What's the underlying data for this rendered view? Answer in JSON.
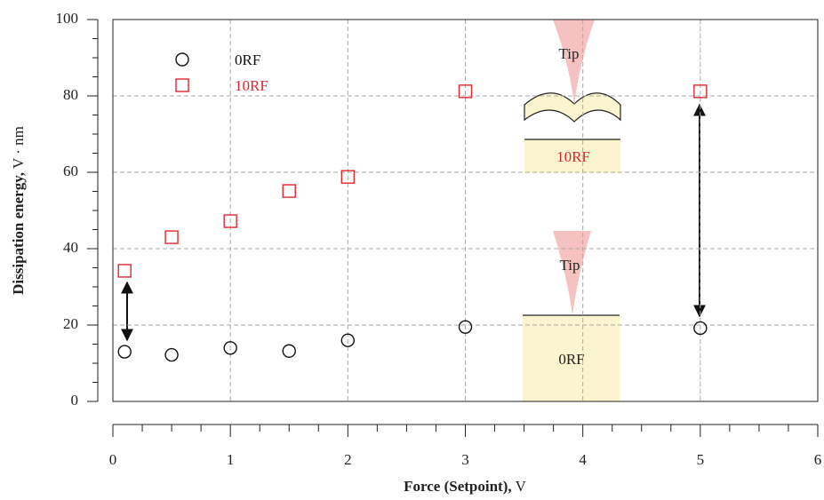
{
  "chart_data": {
    "type": "scatter",
    "ylabel": "Dissipation energy,",
    "yunit": "V · nm",
    "xlabel": "Force (Setpoint),",
    "xunit": "V",
    "x": [
      0.1,
      0.5,
      1,
      1.5,
      2,
      3,
      5
    ],
    "series": [
      {
        "name": "0RF",
        "color": "#111111",
        "marker": "circle",
        "values": [
          13,
          12.2,
          14,
          13.2,
          16,
          19.5,
          19.2
        ]
      },
      {
        "name": "10RF",
        "color": "#e0282e",
        "marker": "square",
        "values": [
          34.2,
          43,
          47.2,
          55.1,
          58.8,
          81.2,
          81.2
        ]
      }
    ],
    "xlim": [
      0,
      6
    ],
    "ylim": [
      0,
      100
    ],
    "xticks": [
      0,
      1,
      2,
      3,
      4,
      5,
      6
    ],
    "yticks": [
      0,
      20,
      40,
      60,
      80,
      100
    ],
    "xminorticks": [
      0.25,
      0.5,
      0.75,
      1.25,
      1.5,
      1.75,
      2.25,
      2.5,
      2.75,
      3.25,
      3.5,
      3.75,
      4.25,
      4.5,
      4.75,
      5.25,
      5.5,
      5.75
    ],
    "yminorticks": [
      5,
      10,
      15,
      25,
      30,
      35,
      45,
      50,
      55,
      65,
      70,
      75,
      85,
      90,
      95
    ],
    "grid": true,
    "annotations": [
      "Tip",
      "10RF",
      "Tip",
      "0RF"
    ]
  }
}
